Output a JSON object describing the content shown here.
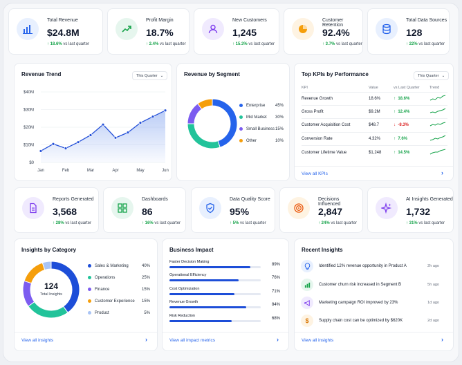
{
  "kpis_top": [
    {
      "label": "Total Revenue",
      "value": "$24.8M",
      "change": "18.6%",
      "suffix": "vs last quarter",
      "icon": "bar-chart-icon"
    },
    {
      "label": "Profit Margin",
      "value": "18.7%",
      "change": "2.4%",
      "suffix": "vs last quarter",
      "icon": "trend-up-icon"
    },
    {
      "label": "New Customers",
      "value": "1,245",
      "change": "15.3%",
      "suffix": "vs last quarter",
      "icon": "user-icon"
    },
    {
      "label": "Customer Retention",
      "value": "92.4%",
      "change": "3.7%",
      "suffix": "vs last quarter",
      "icon": "pie-icon"
    },
    {
      "label": "Total Data Sources",
      "value": "128",
      "change": "22%",
      "suffix": "vs last quarter",
      "icon": "database-icon"
    }
  ],
  "revenue_trend": {
    "title": "Revenue Trend",
    "dropdown": "This Quarter",
    "chart_data": {
      "type": "line",
      "x": [
        "Jan",
        "Jan-b",
        "Feb",
        "Feb-b",
        "Mar",
        "Mar-b",
        "Apr",
        "Apr-b",
        "May",
        "May-b",
        "Jun"
      ],
      "values": [
        6.5,
        10.5,
        8,
        11.5,
        15.5,
        21.5,
        14,
        17,
        22.5,
        26,
        29.5
      ],
      "xticks": [
        "Jan",
        "Feb",
        "Mar",
        "Apr",
        "May",
        "Jun"
      ],
      "yticks": [
        "$40M",
        "$30M",
        "$20M",
        "$10M",
        "$0"
      ],
      "ylim": [
        0,
        40
      ]
    }
  },
  "segment": {
    "title": "Revenue by Segment",
    "chart_data": {
      "type": "pie",
      "categories": [
        "Enterprise",
        "Mid Market",
        "Small Business",
        "Other"
      ],
      "values": [
        45,
        30,
        15,
        10
      ]
    },
    "values_text": [
      "45%",
      "30%",
      "15%",
      "10%"
    ],
    "colors": [
      "#2563eb",
      "#22c39a",
      "#7c5cf0",
      "#f59e0b"
    ]
  },
  "top_kpis": {
    "title": "Top KPIs by Performance",
    "dropdown": "This Quarter",
    "headers": [
      "KPI",
      "Value",
      "vs Last Quarter",
      "Trend"
    ],
    "rows": [
      {
        "name": "Revenue Growth",
        "value": "18.6%",
        "arrow": "↑",
        "change": "18.6%",
        "dir": "up"
      },
      {
        "name": "Gross Profit",
        "value": "$9.2M",
        "arrow": "↑",
        "change": "12.4%",
        "dir": "up"
      },
      {
        "name": "Customer Acquisition Cost",
        "value": "$48.7",
        "arrow": "↓",
        "change": "-8.3%",
        "dir": "down"
      },
      {
        "name": "Conversion Rate",
        "value": "4.32%",
        "arrow": "↑",
        "change": "7.6%",
        "dir": "up"
      },
      {
        "name": "Customer Lifetime Value",
        "value": "$1,248",
        "arrow": "↑",
        "change": "14.5%",
        "dir": "up"
      }
    ],
    "link": "View all KPIs"
  },
  "kpis_mid": [
    {
      "label": "Reports Generated",
      "value": "3,568",
      "change": "28%",
      "suffix": "vs last quarter",
      "icon": "document-icon"
    },
    {
      "label": "Dashboards",
      "value": "86",
      "change": "16%",
      "suffix": "vs last quarter",
      "icon": "grid-icon"
    },
    {
      "label": "Data Quality Score",
      "value": "95%",
      "change": "5%",
      "suffix": "vs last quarter",
      "icon": "shield-check-icon"
    },
    {
      "label": "Decisions Influenced",
      "value": "2,847",
      "change": "24%",
      "suffix": "vs last quarter",
      "icon": "target-icon"
    },
    {
      "label": "AI Insights Generated",
      "value": "1,732",
      "change": "31%",
      "suffix": "vs last quarter",
      "icon": "sparkle-icon"
    }
  ],
  "insights_cat": {
    "title": "Insights by Category",
    "center_value": "124",
    "center_label": "Total Insights",
    "chart_data": {
      "type": "pie",
      "categories": [
        "Sales & Marketing",
        "Operations",
        "Finance",
        "Customer Experience",
        "Product"
      ],
      "values": [
        40,
        25,
        15,
        15,
        5
      ]
    },
    "values_text": [
      "40%",
      "25%",
      "15%",
      "15%",
      "5%"
    ],
    "colors": [
      "#1d4ed8",
      "#22c39a",
      "#7c5cf0",
      "#f59e0b",
      "#a9c4f5"
    ],
    "link": "View all insights"
  },
  "impact": {
    "title": "Business Impact",
    "chart_data": {
      "type": "bar",
      "categories": [
        "Faster Decision Making",
        "Operational Efficiency",
        "Cost Optimization",
        "Revenue Growth",
        "Risk Reduction"
      ],
      "values": [
        89,
        76,
        71,
        84,
        68
      ]
    },
    "values_text": [
      "89%",
      "76%",
      "71%",
      "84%",
      "68%"
    ],
    "link": "View all impact metrics"
  },
  "recent": {
    "title": "Recent Insights",
    "items": [
      {
        "text": "Identified 12% revenue opportunity in Product A",
        "time": "2h ago",
        "icon": "lightbulb-icon",
        "bg": "#e8f0fe",
        "fg": "#2563eb"
      },
      {
        "text": "Customer churn risk increased in Segment B",
        "time": "5h ago",
        "icon": "chart-icon",
        "bg": "#e6f6ee",
        "fg": "#16a34a"
      },
      {
        "text": "Marketing campaign ROI improved by 23%",
        "time": "1d ago",
        "icon": "megaphone-icon",
        "bg": "#f0eafe",
        "fg": "#7c3aed"
      },
      {
        "text": "Supply chain cost can be optimized by $620K",
        "time": "2d ago",
        "icon": "dollar-icon",
        "bg": "#fef3e2",
        "fg": "#d97706"
      }
    ],
    "link": "View all insights"
  }
}
